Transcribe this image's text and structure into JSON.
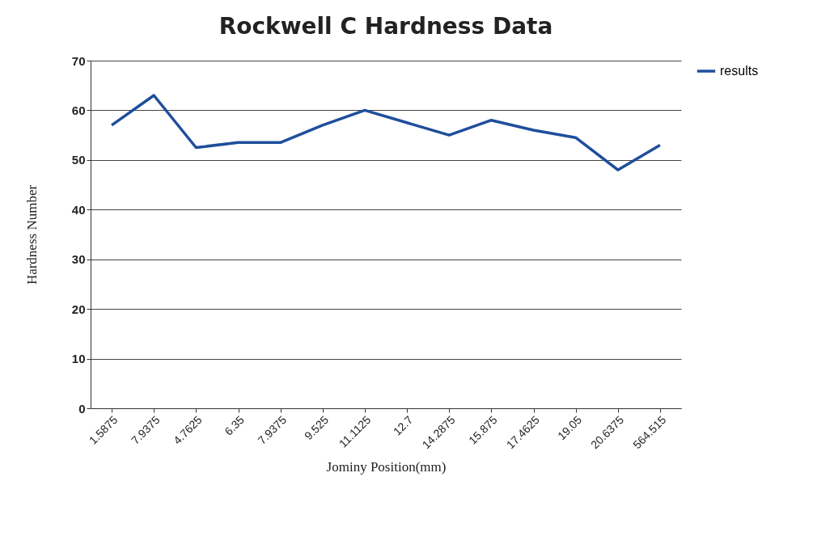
{
  "chart_data": {
    "type": "line",
    "title": "Rockwell C Hardness Data",
    "xlabel": "Jominy Position(mm)",
    "ylabel": "Hardness Number",
    "categories": [
      "1.5875",
      "7.9375",
      "4.7625",
      "6.35",
      "7.9375",
      "9.525",
      "11.1125",
      "12.7",
      "14.2875",
      "15.875",
      "17.4625",
      "19.05",
      "20.6375",
      "564.515"
    ],
    "series": [
      {
        "name": "results",
        "color": "#1f4e9c",
        "values": [
          57,
          63,
          52.5,
          53.5,
          53.5,
          57,
          60,
          57.5,
          55,
          58,
          56,
          54.5,
          48,
          53
        ]
      }
    ],
    "ylim": [
      0,
      70
    ],
    "yticks": [
      0,
      10,
      20,
      30,
      40,
      50,
      60,
      70
    ],
    "grid": "y",
    "legend": "right",
    "marker": "none",
    "line_style": "solid"
  }
}
